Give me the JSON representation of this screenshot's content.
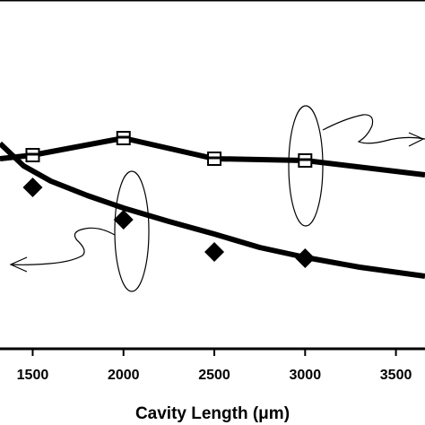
{
  "chart_data": {
    "type": "line",
    "xlabel": "Cavity Length (μm)",
    "x_ticks": [
      1500,
      2000,
      2500,
      3000,
      3500
    ],
    "xlim": [
      1320,
      3660
    ],
    "grid": false,
    "series": [
      {
        "marker": "square",
        "points": [
          [
            1320,
            177
          ],
          [
            1500,
            173
          ],
          [
            2000,
            154
          ],
          [
            2500,
            177
          ],
          [
            3000,
            179
          ],
          [
            3660,
            195
          ]
        ],
        "annotation": "ellipse with arrow pointing right"
      },
      {
        "marker": "diamond",
        "points": [
          [
            1320,
            160
          ],
          [
            1500,
            209
          ],
          [
            2000,
            245
          ],
          [
            2500,
            281
          ],
          [
            3000,
            288
          ],
          [
            3660,
            308
          ]
        ],
        "fit_curve": [
          [
            1320,
            160
          ],
          [
            1450,
            185
          ],
          [
            1600,
            202
          ],
          [
            1800,
            218
          ],
          [
            2000,
            232
          ],
          [
            2250,
            247
          ],
          [
            2500,
            261
          ],
          [
            2750,
            276
          ],
          [
            3000,
            287
          ],
          [
            3300,
            298
          ],
          [
            3660,
            308
          ]
        ],
        "annotation": "ellipse with arrow pointing left"
      }
    ]
  }
}
